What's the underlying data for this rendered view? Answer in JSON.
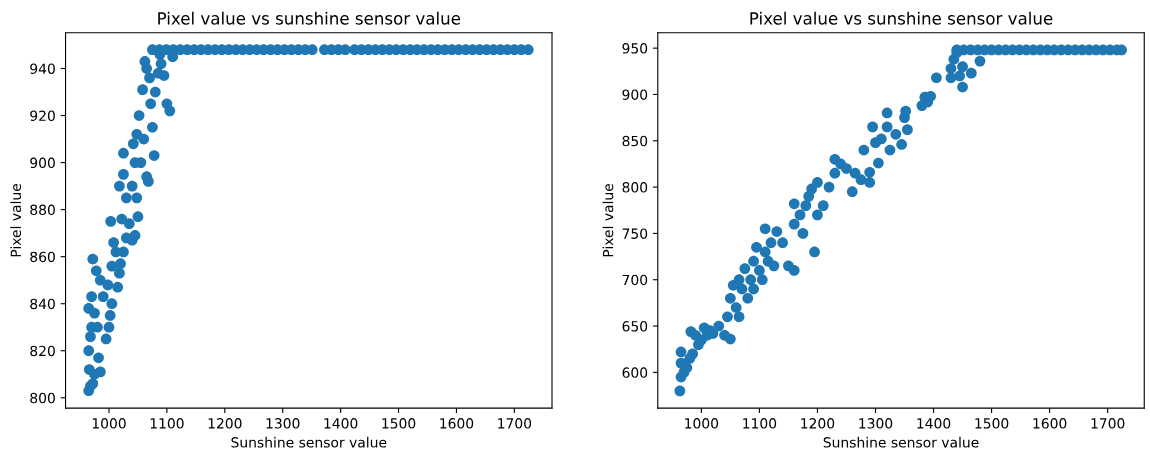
{
  "chart_data": [
    {
      "type": "scatter",
      "title": "Pixel value vs sunshine sensor value",
      "xlabel": "Sunshine sensor value",
      "ylabel": "Pixel value",
      "xlim": [
        925,
        1765
      ],
      "ylim": [
        795.6,
        955.2
      ],
      "xticks": [
        1000,
        1100,
        1200,
        1300,
        1400,
        1500,
        1600,
        1700
      ],
      "yticks": [
        800,
        820,
        840,
        860,
        880,
        900,
        920,
        940
      ],
      "marker": "circle",
      "grid": false,
      "series": [
        {
          "color": "#1f77b4",
          "x": [
            965,
            968,
            972,
            966,
            975,
            985,
            965,
            968,
            970,
            965,
            975,
            980,
            982,
            970,
            972,
            978,
            985,
            990,
            995,
            1000,
            1002,
            1005,
            998,
            1005,
            1003,
            1008,
            1012,
            1015,
            1018,
            1020,
            1025,
            1022,
            1030,
            1018,
            1025,
            1025,
            1030,
            1035,
            1040,
            1045,
            1040,
            1045,
            1050,
            1048,
            1042,
            1048,
            1052,
            1055,
            1058,
            1060,
            1065,
            1068,
            1062,
            1065,
            1070,
            1072,
            1075,
            1078,
            1080,
            1085,
            1088,
            1090,
            1095,
            1100,
            1105,
            1110,
            1075,
            1087,
            1099,
            1111,
            1123,
            1135,
            1147,
            1159,
            1171,
            1183,
            1195,
            1207,
            1219,
            1231,
            1243,
            1255,
            1267,
            1279,
            1291,
            1303,
            1315,
            1327,
            1339,
            1351,
            1372,
            1384,
            1396,
            1408,
            1424,
            1436,
            1448,
            1460,
            1472,
            1484,
            1496,
            1508,
            1520,
            1532,
            1544,
            1556,
            1568,
            1580,
            1592,
            1604,
            1616,
            1628,
            1640,
            1652,
            1664,
            1676,
            1688,
            1700,
            1712,
            1724
          ],
          "values": [
            803,
            805,
            806,
            812,
            810,
            811,
            820,
            826,
            830,
            838,
            836,
            830,
            817,
            843,
            859,
            854,
            850,
            843,
            825,
            830,
            835,
            840,
            848,
            856,
            875,
            866,
            862,
            847,
            853,
            857,
            862,
            876,
            868,
            890,
            904,
            895,
            885,
            874,
            867,
            869,
            890,
            900,
            877,
            885,
            908,
            912,
            920,
            900,
            931,
            910,
            894,
            892,
            943,
            940,
            936,
            925,
            915,
            903,
            930,
            938,
            946,
            942,
            937,
            925,
            922,
            945,
            948,
            948,
            948,
            948,
            948,
            948,
            948,
            948,
            948,
            948,
            948,
            948,
            948,
            948,
            948,
            948,
            948,
            948,
            948,
            948,
            948,
            948,
            948,
            948,
            948,
            948,
            948,
            948,
            948,
            948,
            948,
            948,
            948,
            948,
            948,
            948,
            948,
            948,
            948,
            948,
            948,
            948,
            948,
            948,
            948,
            948,
            948,
            948,
            948,
            948,
            948,
            948,
            948,
            948
          ]
        }
      ]
    },
    {
      "type": "scatter",
      "title": "Pixel value vs sunshine sensor value",
      "xlabel": "Sunshine sensor value",
      "ylabel": "Pixel value",
      "xlim": [
        925,
        1763
      ],
      "ylim": [
        561.4,
        966.6
      ],
      "xticks": [
        1000,
        1100,
        1200,
        1300,
        1400,
        1500,
        1600,
        1700
      ],
      "yticks": [
        600,
        650,
        700,
        750,
        800,
        850,
        900,
        950
      ],
      "marker": "circle",
      "grid": false,
      "series": [
        {
          "color": "#1f77b4",
          "x": [
            963,
            965,
            965,
            965,
            970,
            975,
            980,
            985,
            982,
            990,
            995,
            1000,
            1005,
            1010,
            1015,
            1020,
            1030,
            1040,
            1050,
            1045,
            1050,
            1055,
            1060,
            1065,
            1065,
            1070,
            1075,
            1080,
            1085,
            1090,
            1090,
            1095,
            1100,
            1105,
            1110,
            1110,
            1115,
            1120,
            1125,
            1130,
            1140,
            1150,
            1160,
            1160,
            1160,
            1170,
            1175,
            1180,
            1185,
            1190,
            1195,
            1200,
            1200,
            1210,
            1220,
            1230,
            1230,
            1240,
            1250,
            1260,
            1265,
            1275,
            1280,
            1290,
            1290,
            1295,
            1300,
            1305,
            1310,
            1320,
            1320,
            1325,
            1335,
            1345,
            1350,
            1352,
            1355,
            1380,
            1385,
            1390,
            1395,
            1405,
            1430,
            1430,
            1435,
            1440,
            1445,
            1450,
            1450,
            1465,
            1480,
            1440,
            1452,
            1464,
            1476,
            1488,
            1500,
            1512,
            1524,
            1536,
            1548,
            1560,
            1572,
            1584,
            1596,
            1608,
            1620,
            1632,
            1644,
            1656,
            1668,
            1680,
            1692,
            1704,
            1716,
            1724
          ],
          "values": [
            580,
            595,
            610,
            622,
            600,
            605,
            615,
            620,
            644,
            640,
            630,
            635,
            648,
            640,
            645,
            642,
            650,
            640,
            636,
            660,
            680,
            694,
            670,
            660,
            700,
            690,
            712,
            680,
            700,
            720,
            690,
            735,
            710,
            700,
            755,
            730,
            720,
            740,
            715,
            752,
            740,
            715,
            710,
            760,
            782,
            770,
            750,
            780,
            790,
            798,
            730,
            770,
            805,
            780,
            800,
            815,
            830,
            825,
            820,
            795,
            815,
            808,
            840,
            805,
            816,
            865,
            848,
            826,
            852,
            865,
            880,
            840,
            857,
            846,
            875,
            882,
            862,
            888,
            897,
            892,
            898,
            918,
            918,
            928,
            938,
            945,
            920,
            930,
            908,
            923,
            936,
            948,
            948,
            948,
            948,
            948,
            948,
            948,
            948,
            948,
            948,
            948,
            948,
            948,
            948,
            948,
            948,
            948,
            948,
            948,
            948,
            948,
            948,
            948,
            948,
            948
          ]
        }
      ]
    }
  ]
}
